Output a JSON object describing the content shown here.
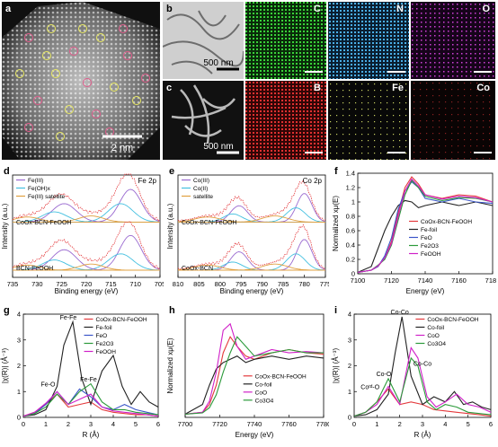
{
  "figure": {
    "panels": {
      "a": {
        "label": "a",
        "scale_bar": "2 nm"
      },
      "b": {
        "label": "b",
        "scale_bar": "500 nm",
        "maps": [
          "C",
          "N",
          "O"
        ]
      },
      "c": {
        "label": "c",
        "scale_bar": "500 nm",
        "maps": [
          "B",
          "Fe",
          "Co"
        ]
      },
      "d": {
        "label": "d"
      },
      "e": {
        "label": "e"
      },
      "f": {
        "label": "f"
      },
      "g": {
        "label": "g"
      },
      "h": {
        "label": "h"
      },
      "i": {
        "label": "i"
      }
    },
    "colors": {
      "black": "#222222",
      "red": "#e4393c",
      "blue": "#3a55c8",
      "magenta": "#d020c8",
      "green": "#2b9a3a",
      "purple": "#9a6ad0",
      "cyan": "#44c0e0",
      "orange": "#e0a040",
      "olive": "#8a8a2a"
    }
  },
  "chart_data": [
    {
      "id": "d",
      "type": "line",
      "title": "Fe 2p",
      "xlabel": "Binding energy (eV)",
      "ylabel": "Intensity (a.u.)",
      "xlim": [
        735,
        705
      ],
      "xticks": [
        735,
        730,
        725,
        720,
        715,
        710,
        705
      ],
      "legend": [
        "Fe(III)",
        "Fe(OH)x",
        "Fe(III) satellite"
      ],
      "annotations": [
        "CoOx-BCN-FeOOH",
        "BCN-FeOOH"
      ],
      "series": [
        {
          "name": "Fe(III)",
          "color": "#9a6ad0",
          "peak_x": 711.0
        },
        {
          "name": "Fe(OH)x",
          "color": "#44c0e0",
          "peak_x": 713.0
        },
        {
          "name": "Fe(III) satellite",
          "color": "#e0a040",
          "peak_x": 719.0
        }
      ]
    },
    {
      "id": "e",
      "type": "line",
      "title": "Co 2p",
      "xlabel": "Binding energy (eV)",
      "ylabel": "Intensity (a.u.)",
      "xlim": [
        810,
        775
      ],
      "xticks": [
        810,
        805,
        800,
        795,
        790,
        785,
        780,
        775
      ],
      "legend": [
        "Co(III)",
        "Co(II)",
        "satellite"
      ],
      "annotations": [
        "CoOx-BCN-FeOOH",
        "CoOx-BCN"
      ],
      "series": [
        {
          "name": "Co(III)",
          "color": "#9a6ad0",
          "peak_x": 780.0
        },
        {
          "name": "Co(II)",
          "color": "#44c0e0",
          "peak_x": 782.0
        },
        {
          "name": "satellite",
          "color": "#e0a040",
          "peak_x": 787.0
        }
      ]
    },
    {
      "id": "f",
      "type": "line",
      "xlabel": "Energy (eV)",
      "ylabel": "Normalized xμ(E)",
      "xlim": [
        7100,
        7180
      ],
      "ylim": [
        0.0,
        1.4
      ],
      "xticks": [
        7100,
        7120,
        7140,
        7160,
        7180
      ],
      "yticks": [
        0.0,
        0.2,
        0.4,
        0.6,
        0.8,
        1.0,
        1.2,
        1.4
      ],
      "series": [
        {
          "name": "CoOx-BCN-FeOOH",
          "color": "#e4393c",
          "x": [
            7100,
            7108,
            7112,
            7116,
            7120,
            7124,
            7128,
            7132,
            7136,
            7140,
            7150,
            7160,
            7170,
            7180
          ],
          "y": [
            0.02,
            0.05,
            0.1,
            0.22,
            0.45,
            0.85,
            1.2,
            1.35,
            1.25,
            1.1,
            1.05,
            1.1,
            1.08,
            1.0
          ]
        },
        {
          "name": "Fe-foil",
          "color": "#222222",
          "x": [
            7100,
            7108,
            7112,
            7116,
            7120,
            7124,
            7128,
            7132,
            7136,
            7140,
            7150,
            7160,
            7170,
            7180
          ],
          "y": [
            0.02,
            0.1,
            0.35,
            0.6,
            0.8,
            0.95,
            1.02,
            1.0,
            0.92,
            0.95,
            1.0,
            0.95,
            1.0,
            0.95
          ]
        },
        {
          "name": "FeO",
          "color": "#3a55c8",
          "x": [
            7100,
            7108,
            7112,
            7116,
            7120,
            7124,
            7128,
            7132,
            7136,
            7140,
            7150,
            7160,
            7170,
            7180
          ],
          "y": [
            0.02,
            0.05,
            0.1,
            0.25,
            0.5,
            0.9,
            1.15,
            1.28,
            1.2,
            1.05,
            1.0,
            1.05,
            1.0,
            0.98
          ]
        },
        {
          "name": "Fe2O3",
          "color": "#2b9a3a",
          "x": [
            7100,
            7108,
            7112,
            7116,
            7120,
            7124,
            7128,
            7132,
            7136,
            7140,
            7150,
            7160,
            7170,
            7180
          ],
          "y": [
            0.02,
            0.05,
            0.12,
            0.2,
            0.4,
            0.75,
            1.1,
            1.3,
            1.2,
            1.08,
            1.02,
            1.06,
            1.05,
            1.0
          ]
        },
        {
          "name": "FeOOH",
          "color": "#d020c8",
          "x": [
            7100,
            7108,
            7112,
            7116,
            7120,
            7124,
            7128,
            7132,
            7136,
            7140,
            7150,
            7160,
            7170,
            7180
          ],
          "y": [
            0.02,
            0.05,
            0.11,
            0.22,
            0.42,
            0.8,
            1.15,
            1.32,
            1.22,
            1.1,
            1.04,
            1.08,
            1.06,
            1.0
          ]
        }
      ]
    },
    {
      "id": "g",
      "type": "line",
      "xlabel": "R (Å)",
      "ylabel": "|χ(R)| (Å⁻³)",
      "xlim": [
        0,
        6
      ],
      "ylim": [
        0,
        4
      ],
      "xticks": [
        0,
        1,
        2,
        3,
        4,
        5,
        6
      ],
      "yticks": [
        0,
        1,
        2,
        3,
        4
      ],
      "annotations": [
        "Fe-Fe",
        "Fe-O",
        "Fe-Fe"
      ],
      "series": [
        {
          "name": "CoOx-BCN-FeOOH",
          "color": "#e4393c",
          "x": [
            0,
            0.5,
            1.0,
            1.5,
            2.0,
            2.5,
            3.0,
            3.5,
            4.0,
            4.5,
            5.0,
            5.5,
            6.0
          ],
          "y": [
            0.05,
            0.2,
            0.5,
            0.9,
            0.4,
            0.5,
            0.6,
            0.3,
            0.2,
            0.15,
            0.1,
            0.1,
            0.05
          ]
        },
        {
          "name": "Fe-foil",
          "color": "#222222",
          "x": [
            0,
            0.5,
            1.0,
            1.5,
            1.8,
            2.2,
            2.6,
            3.0,
            3.5,
            4.0,
            4.4,
            4.8,
            5.2,
            5.6,
            6.0
          ],
          "y": [
            0.05,
            0.1,
            0.3,
            1.2,
            2.8,
            3.7,
            1.5,
            0.5,
            1.8,
            2.4,
            1.2,
            0.5,
            1.0,
            0.6,
            0.4
          ]
        },
        {
          "name": "FeO",
          "color": "#3a55c8",
          "x": [
            0,
            0.5,
            1.0,
            1.5,
            2.0,
            2.5,
            3.0,
            3.5,
            4.0,
            4.5,
            5.0,
            5.5,
            6.0
          ],
          "y": [
            0.05,
            0.15,
            0.5,
            1.0,
            0.5,
            1.1,
            0.8,
            0.4,
            0.3,
            0.5,
            0.3,
            0.2,
            0.1
          ]
        },
        {
          "name": "Fe2O3",
          "color": "#2b9a3a",
          "x": [
            0,
            0.5,
            1.0,
            1.5,
            2.0,
            2.5,
            3.0,
            3.5,
            4.0,
            4.5,
            5.0,
            5.5,
            6.0
          ],
          "y": [
            0.05,
            0.15,
            0.4,
            0.9,
            0.5,
            1.0,
            1.3,
            0.6,
            0.3,
            0.3,
            0.2,
            0.15,
            0.1
          ]
        },
        {
          "name": "FeOOH",
          "color": "#d020c8",
          "x": [
            0,
            0.5,
            1.0,
            1.5,
            2.0,
            2.5,
            3.0,
            3.5,
            4.0,
            4.5,
            5.0,
            5.5,
            6.0
          ],
          "y": [
            0.05,
            0.2,
            0.55,
            1.0,
            0.5,
            0.7,
            0.9,
            0.4,
            0.25,
            0.2,
            0.15,
            0.1,
            0.05
          ]
        }
      ]
    },
    {
      "id": "h",
      "type": "line",
      "xlabel": "Energy (eV)",
      "ylabel": "Normalized xμ(E)",
      "xlim": [
        7700,
        7780
      ],
      "xticks": [
        7700,
        7720,
        7740,
        7760,
        7780
      ],
      "series": [
        {
          "name": "CoOx-BCN-FeOOH",
          "color": "#e4393c",
          "x": [
            7700,
            7710,
            7714,
            7718,
            7722,
            7726,
            7730,
            7735,
            7740,
            7750,
            7760,
            7770,
            7780
          ],
          "y": [
            0.05,
            0.08,
            0.2,
            0.5,
            1.0,
            1.25,
            1.1,
            0.95,
            0.9,
            1.0,
            1.05,
            1.0,
            0.98
          ]
        },
        {
          "name": "Co-foil",
          "color": "#222222",
          "x": [
            7700,
            7710,
            7714,
            7718,
            7722,
            7726,
            7730,
            7735,
            7740,
            7750,
            7760,
            7770,
            7780
          ],
          "y": [
            0.05,
            0.2,
            0.5,
            0.75,
            0.85,
            0.9,
            0.95,
            0.85,
            0.9,
            0.95,
            0.9,
            0.95,
            0.92
          ]
        },
        {
          "name": "CoO",
          "color": "#d020c8",
          "x": [
            7700,
            7710,
            7714,
            7718,
            7722,
            7726,
            7730,
            7735,
            7740,
            7750,
            7760,
            7770,
            7780
          ],
          "y": [
            0.05,
            0.08,
            0.25,
            0.7,
            1.35,
            1.45,
            1.1,
            0.9,
            0.95,
            1.05,
            1.0,
            1.02,
            1.0
          ]
        },
        {
          "name": "Co3O4",
          "color": "#2b9a3a",
          "x": [
            7700,
            7710,
            7714,
            7718,
            7722,
            7726,
            7730,
            7735,
            7740,
            7750,
            7760,
            7770,
            7780
          ],
          "y": [
            0.05,
            0.07,
            0.15,
            0.35,
            0.7,
            1.0,
            1.25,
            1.1,
            0.95,
            1.0,
            1.05,
            1.0,
            1.0
          ]
        }
      ]
    },
    {
      "id": "i",
      "type": "line",
      "xlabel": "R (Å)",
      "ylabel": "|χ(R)| (Å⁻³)",
      "xlim": [
        0,
        6
      ],
      "ylim": [
        0,
        4
      ],
      "xticks": [
        0,
        1,
        2,
        3,
        4,
        5,
        6
      ],
      "yticks": [
        0,
        1,
        2,
        3,
        4
      ],
      "annotations": [
        "Co-Co",
        "Co-O",
        "Co-Co",
        "Coᵗᵈ-O"
      ],
      "series": [
        {
          "name": "CoOx-BCN-FeOOH",
          "color": "#e4393c",
          "x": [
            0,
            0.5,
            1.0,
            1.5,
            2.0,
            2.5,
            3.0,
            3.5,
            4.0,
            4.5,
            5.0,
            5.5,
            6.0
          ],
          "y": [
            0.05,
            0.2,
            0.6,
            1.1,
            0.5,
            0.6,
            0.5,
            0.3,
            0.25,
            0.2,
            0.15,
            0.1,
            0.05
          ]
        },
        {
          "name": "Co-foil",
          "color": "#222222",
          "x": [
            0,
            0.5,
            1.0,
            1.5,
            1.8,
            2.1,
            2.5,
            3.0,
            3.5,
            4.0,
            4.4,
            4.8,
            5.2,
            5.6,
            6.0
          ],
          "y": [
            0.05,
            0.1,
            0.3,
            0.9,
            2.5,
            3.9,
            1.6,
            0.5,
            0.8,
            0.6,
            1.0,
            0.5,
            0.6,
            0.4,
            0.3
          ]
        },
        {
          "name": "CoO",
          "color": "#d020c8",
          "x": [
            0,
            0.5,
            1.0,
            1.5,
            2.0,
            2.5,
            2.8,
            3.2,
            3.6,
            4.0,
            4.5,
            5.0,
            5.5,
            6.0
          ],
          "y": [
            0.05,
            0.2,
            0.5,
            1.2,
            0.5,
            2.7,
            2.3,
            0.8,
            0.4,
            0.6,
            0.9,
            0.5,
            0.4,
            0.2
          ]
        },
        {
          "name": "Co3O4",
          "color": "#2b9a3a",
          "x": [
            0,
            0.5,
            1.0,
            1.5,
            2.0,
            2.5,
            2.8,
            3.2,
            3.6,
            4.0,
            4.5,
            5.0,
            5.5,
            6.0
          ],
          "y": [
            0.05,
            0.2,
            0.6,
            1.5,
            0.6,
            2.3,
            2.0,
            0.6,
            0.3,
            0.5,
            0.4,
            0.2,
            0.15,
            0.1
          ]
        }
      ]
    }
  ]
}
